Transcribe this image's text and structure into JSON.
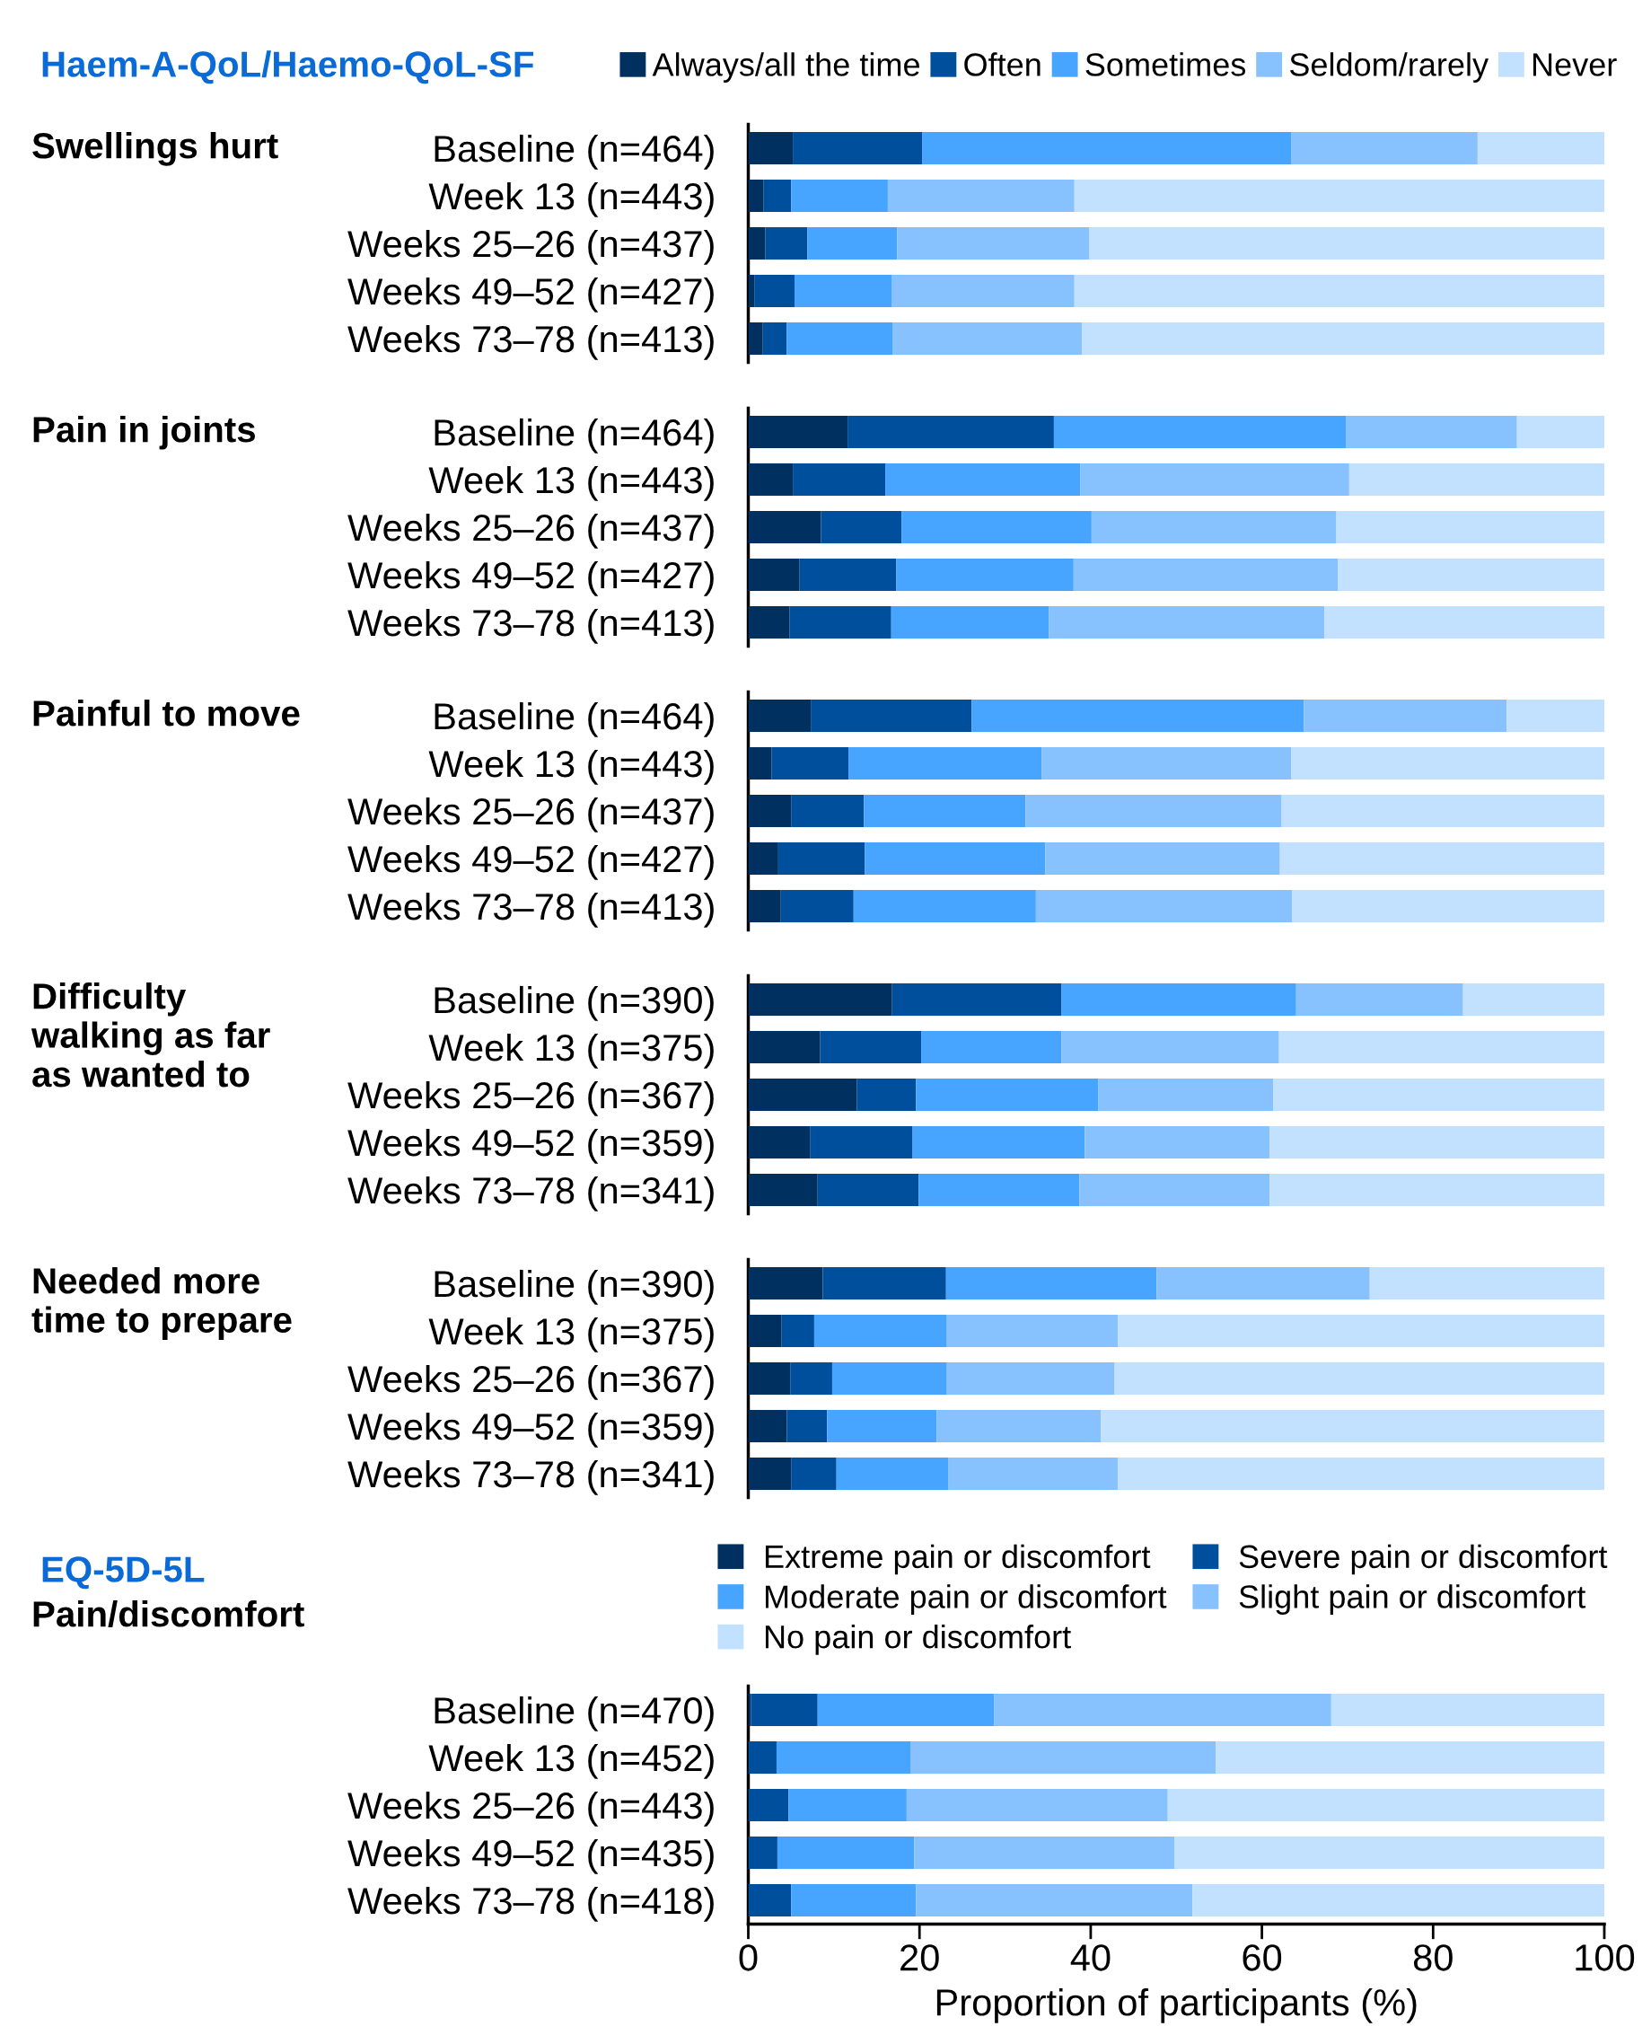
{
  "chart_data": [
    {
      "type": "bar",
      "orientation": "horizontal",
      "stacked": true,
      "title": "Haem-A-QoL/Haemo-QoL-SF",
      "ylabel": "Swellings hurt",
      "legend": "top",
      "tick_labels": "y",
      "grid": false,
      "xlim": [
        0,
        100
      ],
      "categories": [
        "Baseline (n=464)",
        "Week 13 (n=443)",
        "Weeks 25–26 (n=437)",
        "Weeks 49–52 (n=427)",
        "Weeks 73–78 (n=413)"
      ],
      "series": [
        {
          "name": "Always/all the time",
          "color": "#00305f",
          "values": [
            5.2,
            1.8,
            2.0,
            0.7,
            1.7
          ]
        },
        {
          "name": "Often",
          "color": "#004f9c",
          "values": [
            15.1,
            3.2,
            4.9,
            4.7,
            2.8
          ]
        },
        {
          "name": "Sometimes",
          "color": "#47a4ff",
          "values": [
            43.1,
            11.3,
            10.5,
            11.4,
            12.4
          ]
        },
        {
          "name": "Seldom/rarely",
          "color": "#87c2ff",
          "values": [
            21.8,
            21.8,
            22.4,
            21.3,
            22.1
          ]
        },
        {
          "name": "Never",
          "color": "#c2e0ff",
          "values": [
            14.8,
            61.9,
            60.2,
            61.9,
            61.0
          ]
        }
      ]
    },
    {
      "type": "bar",
      "orientation": "horizontal",
      "stacked": true,
      "ylabel": "Pain in joints",
      "tick_labels": "y",
      "grid": false,
      "xlim": [
        0,
        100
      ],
      "categories": [
        "Baseline (n=464)",
        "Week 13 (n=443)",
        "Weeks 25–26 (n=437)",
        "Weeks 49–52 (n=427)",
        "Weeks 73–78 (n=413)"
      ],
      "series": [
        {
          "color": "#00305f",
          "values": [
            11.6,
            5.2,
            8.5,
            6.0,
            4.8
          ]
        },
        {
          "color": "#004f9c",
          "values": [
            24.1,
            10.8,
            9.4,
            11.3,
            11.9
          ]
        },
        {
          "color": "#47a4ff",
          "values": [
            34.1,
            22.8,
            22.2,
            20.7,
            18.4
          ]
        },
        {
          "color": "#87c2ff",
          "values": [
            20.0,
            31.4,
            28.6,
            30.9,
            32.2
          ]
        },
        {
          "color": "#c2e0ff",
          "values": [
            10.2,
            29.8,
            31.3,
            31.1,
            32.7
          ]
        }
      ]
    },
    {
      "type": "bar",
      "orientation": "horizontal",
      "stacked": true,
      "ylabel": "Painful to move",
      "tick_labels": "y",
      "grid": false,
      "xlim": [
        0,
        100
      ],
      "categories": [
        "Baseline (n=464)",
        "Week 13 (n=443)",
        "Weeks 25–26 (n=437)",
        "Weeks 49–52 (n=427)",
        "Weeks 73–78 (n=413)"
      ],
      "series": [
        {
          "color": "#00305f",
          "values": [
            7.3,
            2.7,
            5.0,
            3.5,
            3.8
          ]
        },
        {
          "color": "#004f9c",
          "values": [
            18.8,
            9.0,
            8.5,
            10.1,
            8.5
          ]
        },
        {
          "color": "#47a4ff",
          "values": [
            38.8,
            22.6,
            18.9,
            21.1,
            21.3
          ]
        },
        {
          "color": "#87c2ff",
          "values": [
            23.7,
            29.1,
            29.9,
            27.4,
            29.9
          ]
        },
        {
          "color": "#c2e0ff",
          "values": [
            11.4,
            36.6,
            37.7,
            37.9,
            36.5
          ]
        }
      ]
    },
    {
      "type": "bar",
      "orientation": "horizontal",
      "stacked": true,
      "ylabel": "Difficulty\nwalking as far\nas wanted to",
      "tick_labels": "y",
      "grid": false,
      "xlim": [
        0,
        100
      ],
      "categories": [
        "Baseline (n=390)",
        "Week 13 (n=375)",
        "Weeks 25–26 (n=367)",
        "Weeks 49–52 (n=359)",
        "Weeks 73–78 (n=341)"
      ],
      "series": [
        {
          "color": "#00305f",
          "values": [
            16.8,
            8.4,
            12.7,
            7.2,
            8.1
          ]
        },
        {
          "color": "#004f9c",
          "values": [
            19.8,
            11.8,
            6.9,
            12.0,
            11.8
          ]
        },
        {
          "color": "#47a4ff",
          "values": [
            27.4,
            16.4,
            21.3,
            20.1,
            18.8
          ]
        },
        {
          "color": "#87c2ff",
          "values": [
            19.5,
            25.4,
            20.4,
            21.6,
            22.2
          ]
        },
        {
          "color": "#c2e0ff",
          "values": [
            16.5,
            38.0,
            38.7,
            39.1,
            39.1
          ]
        }
      ]
    },
    {
      "type": "bar",
      "orientation": "horizontal",
      "stacked": true,
      "ylabel": "Needed more\ntime to prepare",
      "tick_labels": "y",
      "grid": false,
      "xlim": [
        0,
        100
      ],
      "categories": [
        "Baseline (n=390)",
        "Week 13 (n=375)",
        "Weeks 25–26 (n=367)",
        "Weeks 49–52 (n=359)",
        "Weeks 73–78 (n=341)"
      ],
      "series": [
        {
          "color": "#00305f",
          "values": [
            8.7,
            3.9,
            4.9,
            4.5,
            5.0
          ]
        },
        {
          "color": "#004f9c",
          "values": [
            14.4,
            3.8,
            4.9,
            4.7,
            5.3
          ]
        },
        {
          "color": "#47a4ff",
          "values": [
            24.6,
            15.5,
            13.4,
            12.8,
            13.1
          ]
        },
        {
          "color": "#87c2ff",
          "values": [
            24.9,
            20.0,
            19.6,
            19.2,
            19.8
          ]
        },
        {
          "color": "#c2e0ff",
          "values": [
            27.4,
            56.8,
            57.2,
            58.8,
            56.8
          ]
        }
      ]
    },
    {
      "type": "bar",
      "orientation": "horizontal",
      "stacked": true,
      "title": "EQ-5D-5L",
      "ylabel": "Pain/discomfort",
      "xlabel": "Proportion of participants (%)",
      "legend": "top",
      "grid": false,
      "xlim": [
        0,
        100
      ],
      "xticks": [
        0,
        20,
        40,
        60,
        80,
        100
      ],
      "categories": [
        "Baseline (n=470)",
        "Week 13 (n=452)",
        "Weeks 25–26 (n=443)",
        "Weeks 49–52 (n=435)",
        "Weeks 73–78 (n=418)"
      ],
      "series": [
        {
          "name": "Extreme pain or discomfort",
          "color": "#00305f",
          "values": [
            0.3,
            0,
            0,
            0,
            0
          ]
        },
        {
          "name": "Severe pain or discomfort",
          "color": "#004f9c",
          "values": [
            7.8,
            3.3,
            4.7,
            3.4,
            5.0
          ]
        },
        {
          "name": "Moderate pain or discomfort",
          "color": "#47a4ff",
          "values": [
            20.6,
            15.7,
            13.8,
            16.0,
            14.6
          ]
        },
        {
          "name": "Slight pain or discomfort",
          "color": "#87c2ff",
          "values": [
            39.4,
            35.6,
            30.5,
            30.4,
            32.3
          ]
        },
        {
          "name": "No pain or discomfort",
          "color": "#c2e0ff",
          "values": [
            31.9,
            45.4,
            51.0,
            50.2,
            48.1
          ]
        }
      ]
    }
  ]
}
